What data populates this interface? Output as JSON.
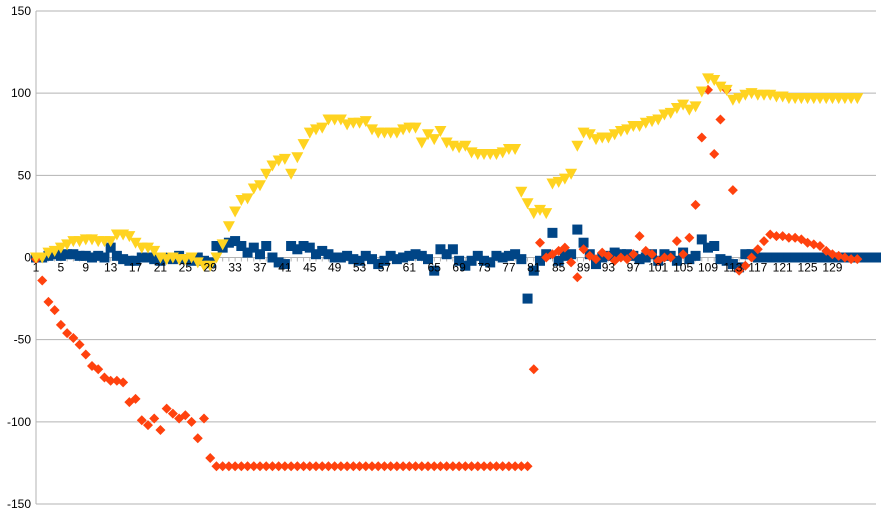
{
  "chart_data": {
    "type": "scatter",
    "title": "",
    "xlabel": "",
    "ylabel": "",
    "ylim": [
      -150,
      150
    ],
    "yticks": [
      150,
      100,
      50,
      0,
      -50,
      -100,
      -150
    ],
    "xticks": [
      1,
      5,
      9,
      13,
      17,
      21,
      25,
      29,
      33,
      37,
      41,
      45,
      49,
      53,
      57,
      61,
      65,
      69,
      73,
      77,
      81,
      85,
      89,
      93,
      97,
      101,
      105,
      109,
      113,
      117,
      121,
      125,
      129
    ],
    "x_start": 1,
    "grid": "horizontal",
    "legend": "none",
    "series": [
      {
        "marker": "square",
        "color": "#004586",
        "values": [
          0,
          0,
          1,
          2,
          1,
          2,
          2,
          1,
          1,
          0,
          1,
          0,
          6,
          1,
          -1,
          -2,
          -2,
          0,
          0,
          -1,
          -2,
          0,
          -1,
          1,
          -1,
          -2,
          0,
          -2,
          -3,
          7,
          6,
          9,
          10,
          7,
          3,
          6,
          2,
          7,
          0,
          -3,
          -4,
          7,
          5,
          7,
          6,
          2,
          4,
          2,
          0,
          0,
          1,
          -1,
          -2,
          1,
          -1,
          -4,
          -2,
          1,
          -1,
          0,
          1,
          2,
          1,
          -1,
          -8,
          5,
          2,
          5,
          -2,
          -5,
          -2,
          1,
          -2,
          -3,
          1,
          0,
          1,
          2,
          -1,
          -25,
          -8,
          -2,
          2,
          15,
          -2,
          1,
          2,
          17,
          9,
          2,
          -4,
          0,
          1,
          3,
          2,
          2,
          1,
          -1,
          0,
          2,
          -2,
          2,
          1,
          -2,
          3,
          -1,
          1,
          11,
          6,
          7,
          -1,
          -2,
          -4,
          -6,
          2,
          2,
          0,
          0,
          0,
          0,
          0,
          0,
          0,
          0,
          0,
          0,
          0,
          0,
          0,
          0,
          0,
          0,
          0,
          0,
          0,
          0
        ]
      },
      {
        "marker": "diamond",
        "color": "#ff420e",
        "values": [
          -1,
          -14,
          -27,
          -32,
          -41,
          -46,
          -49,
          -53,
          -59,
          -66,
          -68,
          -73,
          -75,
          -75,
          -76,
          -88,
          -86,
          -99,
          -102,
          -98,
          -105,
          -92,
          -95,
          -98,
          -96,
          -100,
          -110,
          -98,
          -122,
          -127,
          -127,
          -127,
          -127,
          -127,
          -127,
          -127,
          -127,
          -127,
          -127,
          -127,
          -127,
          -127,
          -127,
          -127,
          -127,
          -127,
          -127,
          -127,
          -127,
          -127,
          -127,
          -127,
          -127,
          -127,
          -127,
          -127,
          -127,
          -127,
          -127,
          -127,
          -127,
          -127,
          -127,
          -127,
          -127,
          -127,
          -127,
          -127,
          -127,
          -127,
          -127,
          -127,
          -127,
          -127,
          -127,
          -127,
          -127,
          -127,
          -127,
          -127,
          -68,
          9,
          0,
          2,
          4,
          6,
          -3,
          -12,
          5,
          1,
          -1,
          3,
          1,
          -2,
          0,
          -1,
          2,
          13,
          4,
          2,
          -2,
          0,
          0,
          10,
          2,
          12,
          32,
          73,
          102,
          63,
          84,
          102,
          41,
          -8,
          -5,
          0,
          5,
          10,
          14,
          13,
          13,
          12,
          12,
          11,
          9,
          8,
          7,
          4,
          2,
          1,
          0,
          -1,
          -1
        ]
      },
      {
        "marker": "triangle-down",
        "color": "#ffd320",
        "values": [
          0,
          0,
          3,
          4,
          6,
          8,
          10,
          10,
          11,
          11,
          10,
          10,
          10,
          14,
          14,
          13,
          9,
          6,
          6,
          4,
          0,
          -1,
          0,
          -1,
          -1,
          0,
          -3,
          -5,
          -5,
          0,
          8,
          19,
          28,
          35,
          36,
          42,
          44,
          51,
          56,
          59,
          60,
          51,
          61,
          69,
          76,
          78,
          79,
          84,
          84,
          84,
          81,
          82,
          82,
          83,
          78,
          76,
          76,
          76,
          76,
          78,
          79,
          79,
          70,
          75,
          72,
          77,
          70,
          68,
          67,
          68,
          64,
          63,
          63,
          63,
          63,
          64,
          66,
          66,
          40,
          33,
          27,
          29,
          27,
          45,
          46,
          48,
          51,
          68,
          76,
          75,
          72,
          73,
          73,
          75,
          77,
          78,
          80,
          80,
          82,
          83,
          84,
          87,
          88,
          91,
          93,
          90,
          92,
          101,
          109,
          108,
          104,
          102,
          96,
          97,
          99,
          100,
          99,
          99,
          99,
          98,
          98,
          97,
          97,
          97,
          97,
          97,
          97,
          97,
          97,
          97,
          97,
          97,
          97
        ]
      }
    ]
  }
}
